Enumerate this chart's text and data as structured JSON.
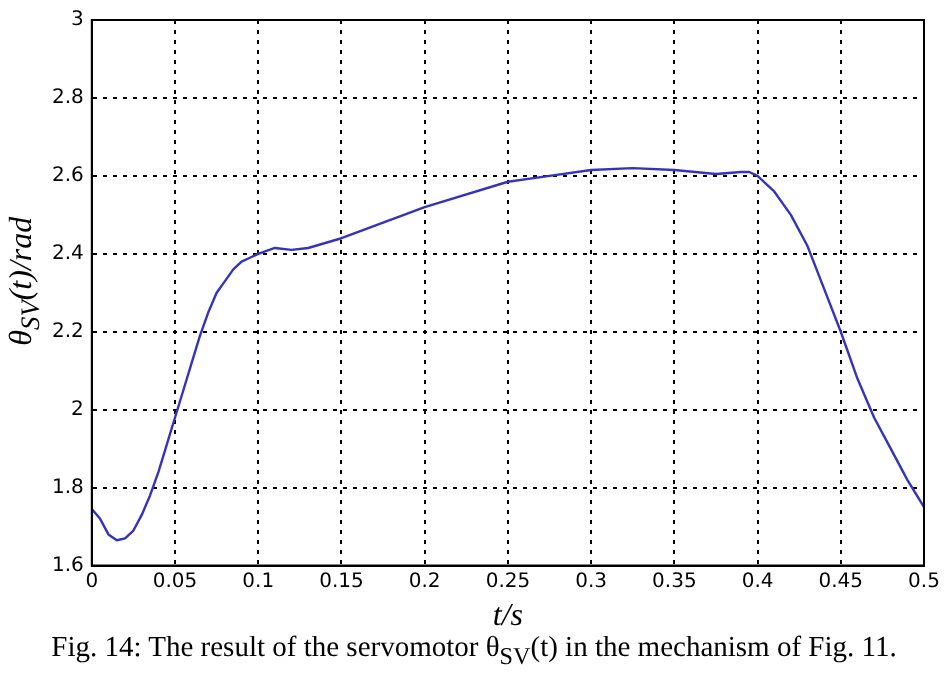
{
  "chart_data": {
    "type": "line",
    "xlabel": "t/s",
    "ylabel": "θ$_{SV}$(t)/rad",
    "annotations": [
      "Fig. 14: The result of the servomotor θ$_{SV}$(t) in the mechanism of Fig. 11."
    ],
    "x": [
      0,
      0.005,
      0.01,
      0.015,
      0.02,
      0.025,
      0.03,
      0.035,
      0.04,
      0.045,
      0.05,
      0.055,
      0.06,
      0.065,
      0.07,
      0.075,
      0.08,
      0.085,
      0.09,
      0.095,
      0.1,
      0.11,
      0.12,
      0.13,
      0.15,
      0.2,
      0.25,
      0.275,
      0.3,
      0.325,
      0.35,
      0.375,
      0.39,
      0.395,
      0.4,
      0.41,
      0.42,
      0.43,
      0.44,
      0.45,
      0.46,
      0.47,
      0.48,
      0.49,
      0.5
    ],
    "series": [
      {
        "color": "#3333bb",
        "values": [
          1.745,
          1.72,
          1.68,
          1.665,
          1.67,
          1.69,
          1.73,
          1.78,
          1.84,
          1.91,
          1.98,
          2.05,
          2.12,
          2.19,
          2.25,
          2.3,
          2.33,
          2.36,
          2.38,
          2.39,
          2.4,
          2.415,
          2.41,
          2.415,
          2.44,
          2.52,
          2.585,
          2.6,
          2.615,
          2.62,
          2.615,
          2.605,
          2.61,
          2.61,
          2.6,
          2.56,
          2.5,
          2.42,
          2.31,
          2.2,
          2.08,
          1.98,
          1.9,
          1.82,
          1.75
        ]
      }
    ],
    "xlim": [
      0,
      0.5
    ],
    "xticks": [
      0,
      0.05,
      0.1,
      0.15,
      0.2,
      0.25,
      0.3,
      0.35,
      0.4,
      0.45,
      0.5
    ],
    "ylim": [
      1.6,
      3
    ],
    "yticks": [
      1.6,
      1.8,
      2,
      2.2,
      2.4,
      2.6,
      2.8,
      3
    ],
    "grid": true,
    "marker": "none",
    "line_style": "solid",
    "legend": false
  }
}
